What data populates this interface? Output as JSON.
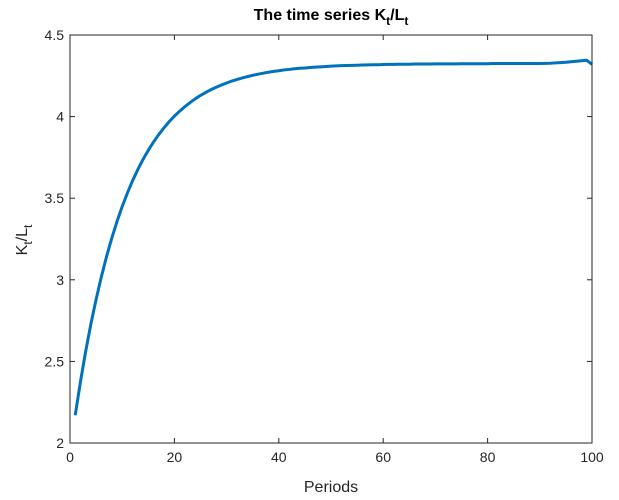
{
  "chart_data": {
    "type": "line",
    "title": {
      "main": "The time series K",
      "sub1": "t",
      "mid": "/L",
      "sub2": "t"
    },
    "xlabel": "Periods",
    "ylabel": {
      "main": "K",
      "sub1": "t",
      "mid": "/L",
      "sub2": "t"
    },
    "xlim": [
      0,
      100
    ],
    "ylim": [
      2,
      4.5
    ],
    "xticks": [
      "0",
      "20",
      "40",
      "60",
      "80",
      "100"
    ],
    "yticks": [
      "2",
      "2.5",
      "3",
      "3.5",
      "4",
      "4.5"
    ],
    "grid": false,
    "color": "#0072BD",
    "x_start": 1,
    "series": [
      {
        "name": "K_t/L_t",
        "values": [
          2.17,
          2.375,
          2.561,
          2.729,
          2.88,
          3.018,
          3.142,
          3.255,
          3.357,
          3.449,
          3.532,
          3.608,
          3.676,
          3.738,
          3.794,
          3.844,
          3.89,
          3.931,
          3.969,
          4.003,
          4.033,
          4.061,
          4.086,
          4.109,
          4.13,
          4.148,
          4.165,
          4.18,
          4.194,
          4.206,
          4.218,
          4.228,
          4.237,
          4.245,
          4.253,
          4.26,
          4.266,
          4.272,
          4.277,
          4.281,
          4.286,
          4.289,
          4.293,
          4.296,
          4.298,
          4.301,
          4.303,
          4.305,
          4.307,
          4.309,
          4.311,
          4.312,
          4.313,
          4.314,
          4.315,
          4.316,
          4.317,
          4.318,
          4.318,
          4.319,
          4.32,
          4.32,
          4.321,
          4.321,
          4.321,
          4.322,
          4.322,
          4.322,
          4.322,
          4.323,
          4.323,
          4.323,
          4.323,
          4.323,
          4.324,
          4.324,
          4.324,
          4.324,
          4.324,
          4.324,
          4.325,
          4.325,
          4.325,
          4.325,
          4.325,
          4.325,
          4.325,
          4.325,
          4.325,
          4.325,
          4.326,
          4.327,
          4.329,
          4.331,
          4.333,
          4.336,
          4.339,
          4.342,
          4.345,
          4.32
        ]
      }
    ]
  }
}
